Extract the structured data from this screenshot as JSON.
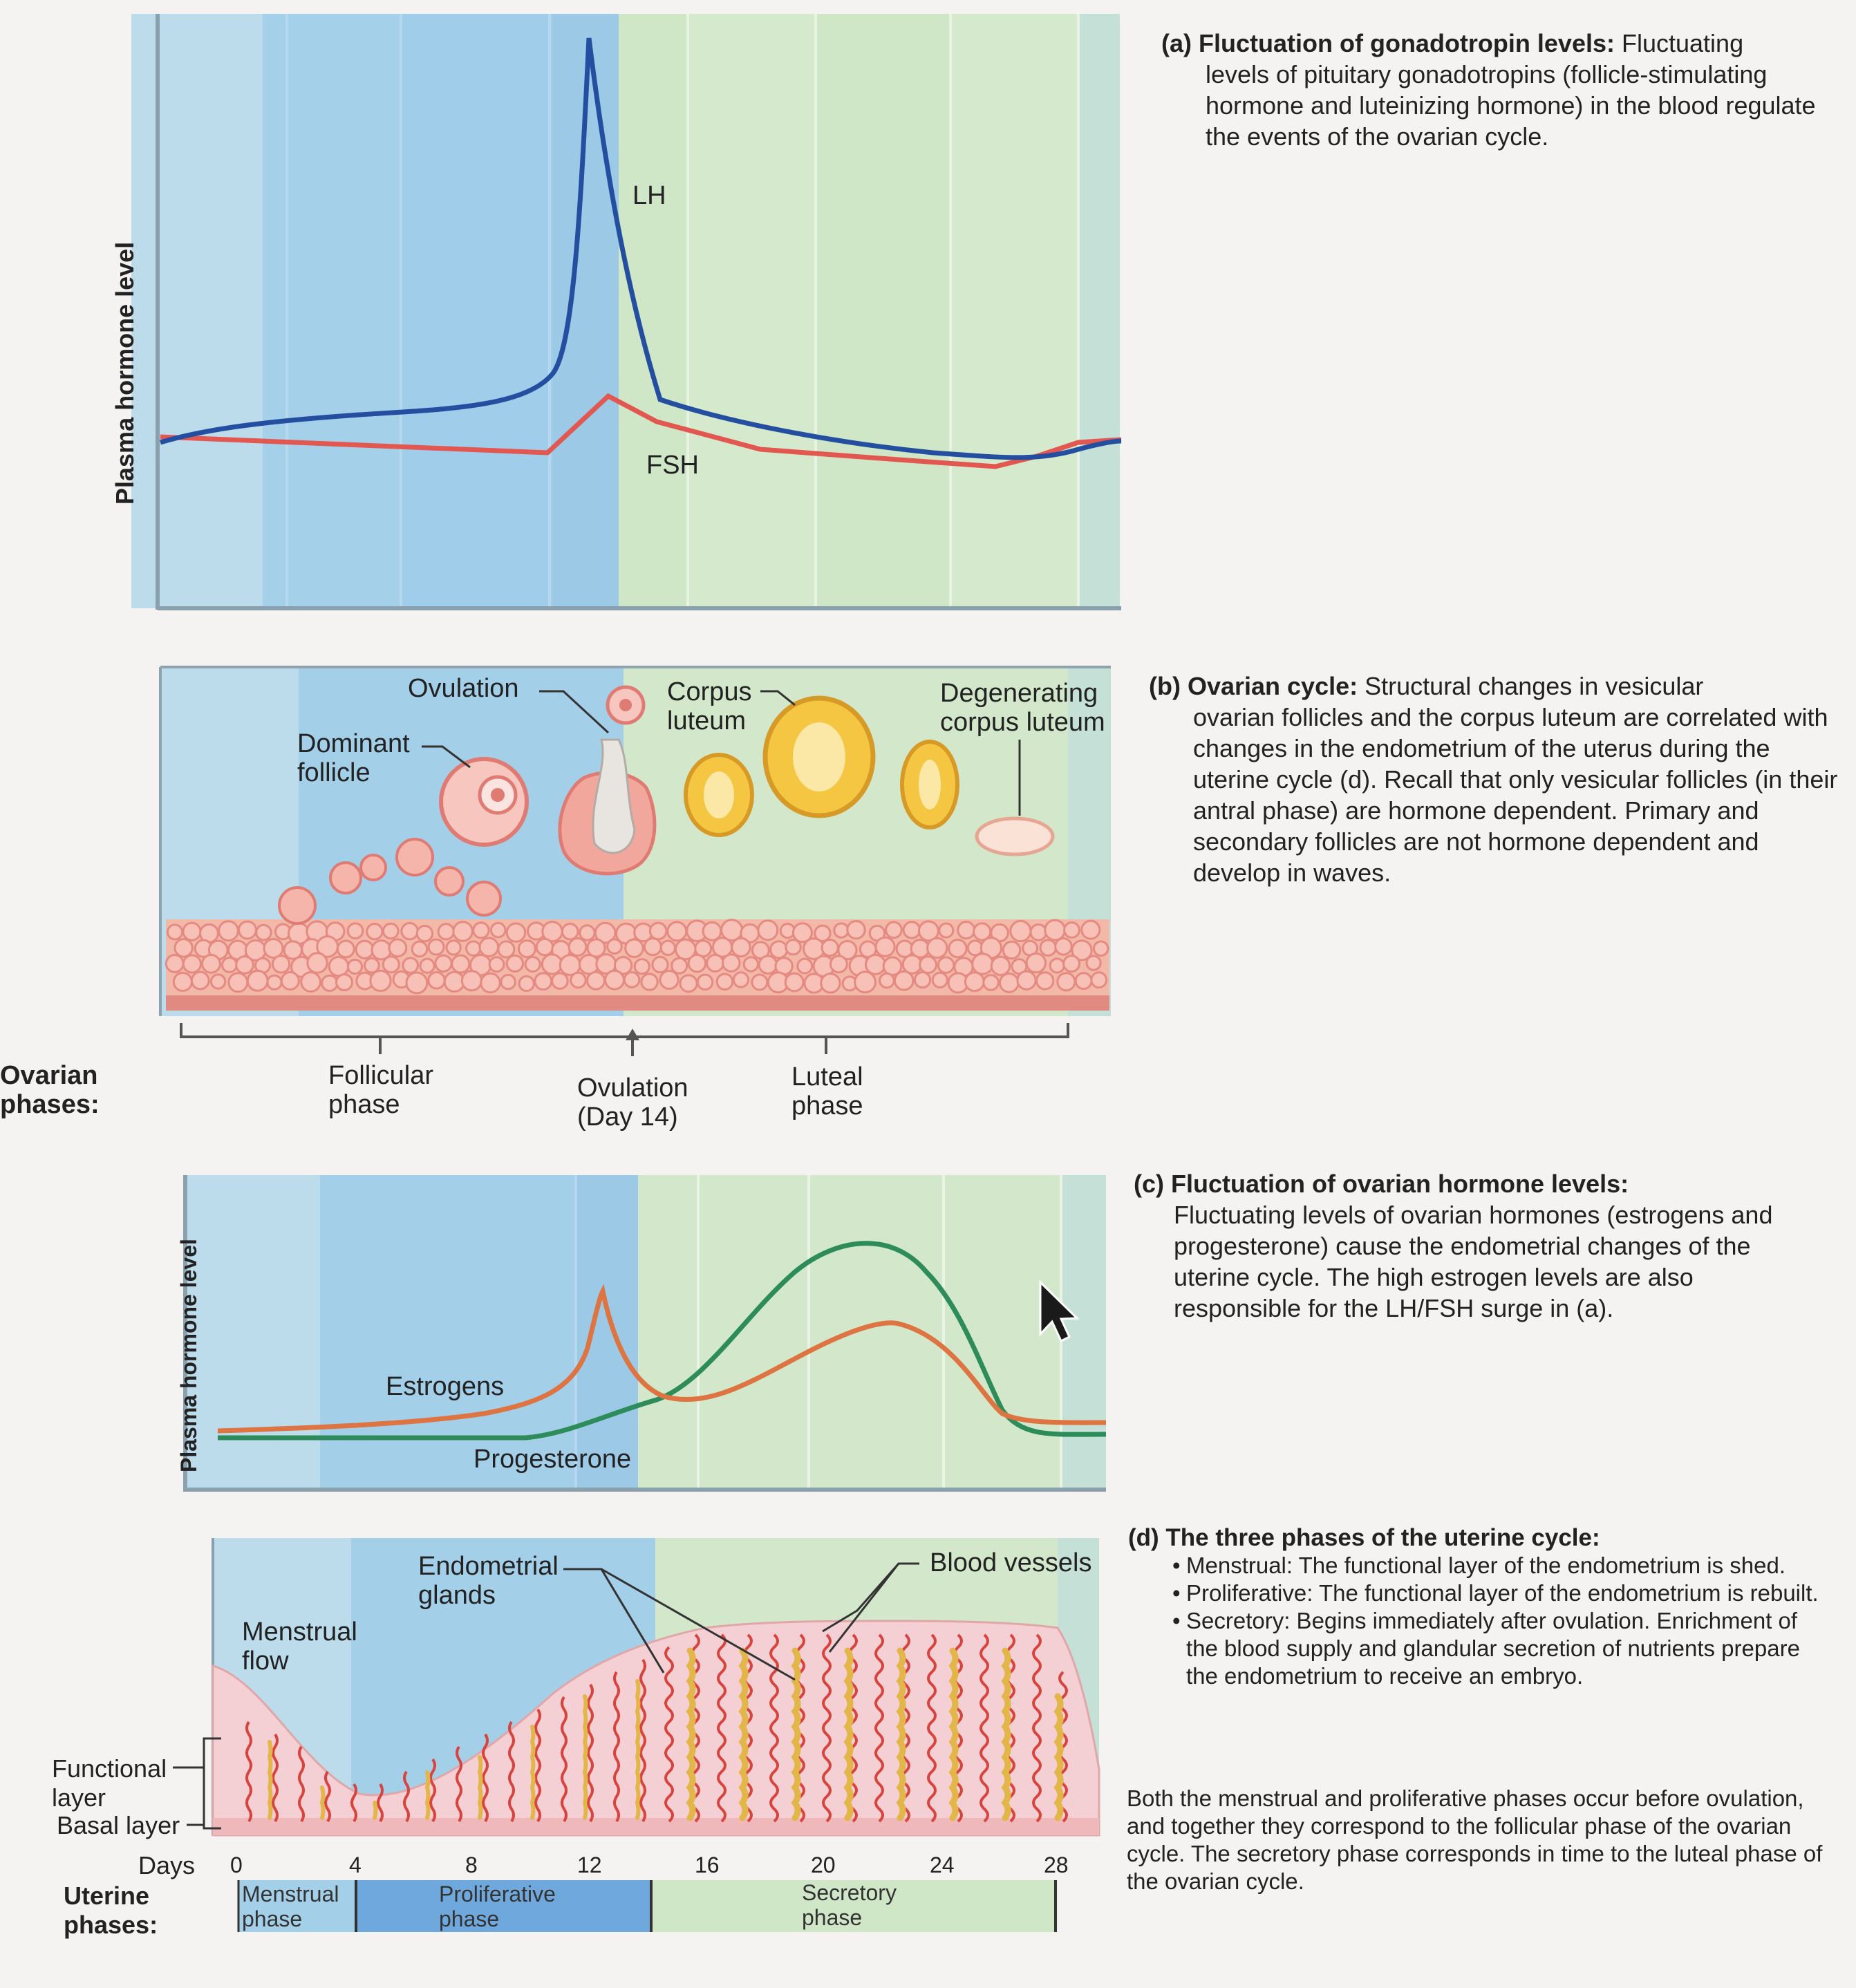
{
  "panel_a": {
    "y_axis": "Plasma hormone level",
    "lh": "LH",
    "fsh": "FSH",
    "caption_head": "(a) Fluctuation of gonadotropin levels:",
    "caption_first": "Fluctuating",
    "caption_body": "levels of pituitary gonadotropins (follicle-stimulating hormone and luteinizing hormone) in the blood regulate the events of the ovarian cycle."
  },
  "panel_b": {
    "ovulation": "Ovulation",
    "corpus_luteum": "Corpus luteum",
    "degenerating": "Degenerating corpus luteum",
    "dominant_follicle": "Dominant follicle",
    "caption_head": "(b) Ovarian cycle:",
    "caption_first": "Structural changes in vesicular",
    "caption_body": "ovarian follicles and the corpus luteum are correlated with changes in the endometrium of the uterus during the uterine cycle (d). Recall that only vesicular follicles (in their antral phase) are hormone dependent. Primary and secondary follicles are not hormone dependent and develop in waves."
  },
  "ovarian_phases": {
    "title": "Ovarian phases:",
    "follicular": "Follicular phase",
    "ovulation": "Ovulation (Day 14)",
    "luteal": "Luteal phase"
  },
  "panel_c": {
    "y_axis": "Plasma hormone level",
    "estrogens": "Estrogens",
    "progesterone": "Progesterone",
    "caption_head": "(c) Fluctuation of ovarian hormone levels:",
    "caption_body": "Fluctuating levels of ovarian hormones (estrogens and progesterone) cause the endometrial changes of the uterine cycle. The high estrogen levels are also responsible for the LH/FSH surge in (a)."
  },
  "panel_d": {
    "endometrial_glands": "Endometrial glands",
    "blood_vessels": "Blood vessels",
    "menstrual_flow": "Menstrual flow",
    "functional_layer": "Functional layer",
    "basal_layer": "Basal layer",
    "days_label": "Days",
    "days": [
      "0",
      "4",
      "8",
      "12",
      "16",
      "20",
      "24",
      "28"
    ],
    "uterine_phases_title": "Uterine phases:",
    "menstrual_phase": "Menstrual phase",
    "proliferative_phase": "Proliferative phase",
    "secretory_phase": "Secretory phase",
    "caption_head": "(d) The three phases of the uterine cycle:",
    "bullets": [
      "Menstrual: The functional layer of the endometrium is shed.",
      "Proliferative: The functional layer of the endometrium is rebuilt.",
      "Secretory: Begins immediately after ovulation. Enrichment of the blood supply and glandular secretion of nutrients prepare the endometrium to receive an embryo."
    ],
    "footer": "Both the menstrual and proliferative phases occur before ovulation, and together they correspond to the follicular phase of the ovarian cycle. The secretory phase corresponds in time to the luteal phase of the ovarian cycle."
  },
  "colors": {
    "light_blue": "#b7d8ea",
    "mid_blue": "#9fcbe8",
    "light_green": "#cfe5c5",
    "lh_line": "#244fa0",
    "fsh_line": "#e2574f",
    "estrogen_line": "#de7441",
    "progesterone_line": "#2d8c5a",
    "tissue": "#f4cfd3",
    "vessel": "#d8443d",
    "gland": "#e3b64a"
  }
}
